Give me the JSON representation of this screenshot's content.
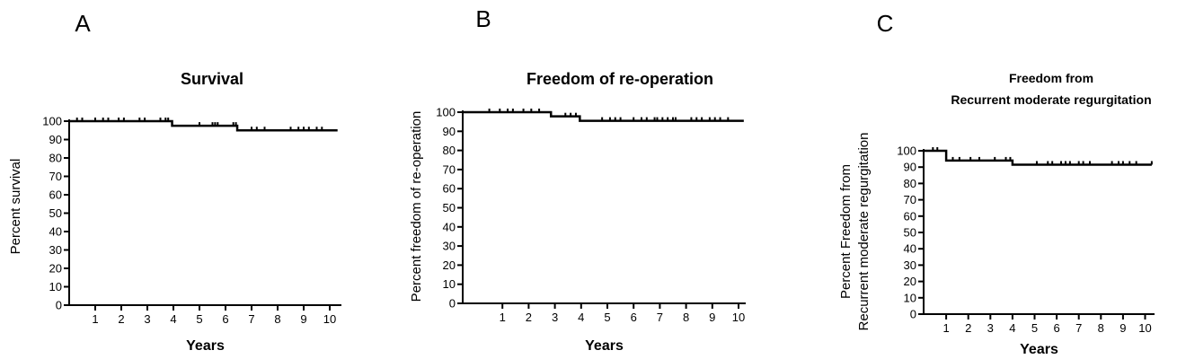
{
  "chart_data": [
    {
      "type": "line",
      "panel_label": "A",
      "title": [
        "Survival"
      ],
      "xlabel": "Years",
      "ylabel": [
        "Percent survival"
      ],
      "xlim": [
        0,
        10.5
      ],
      "ylim": [
        0,
        100
      ],
      "xticks": [
        1,
        2,
        3,
        4,
        5,
        6,
        7,
        8,
        9,
        10
      ],
      "yticks": [
        0,
        10,
        20,
        30,
        40,
        50,
        60,
        70,
        80,
        90,
        100
      ],
      "series": [
        {
          "name": "Survival",
          "steps": [
            [
              0,
              100
            ],
            [
              3.95,
              97.5
            ],
            [
              6.45,
              95
            ],
            [
              10.3,
              95
            ]
          ],
          "censored": [
            0.3,
            0.5,
            1.0,
            1.3,
            1.5,
            1.9,
            2.1,
            2.7,
            2.9,
            3.5,
            3.7,
            3.8,
            5.0,
            5.5,
            5.6,
            5.7,
            6.3,
            6.4,
            7.0,
            7.2,
            7.5,
            8.5,
            8.8,
            9.0,
            9.2,
            9.5,
            9.7
          ]
        }
      ]
    },
    {
      "type": "line",
      "panel_label": "B",
      "title": [
        "Freedom of re-operation"
      ],
      "xlabel": "Years",
      "ylabel": [
        "Percent freedom of re-operation"
      ],
      "xlim": [
        -0.5,
        10.3
      ],
      "ylim": [
        0,
        100
      ],
      "xticks": [
        1,
        2,
        3,
        4,
        5,
        6,
        7,
        8,
        9,
        10
      ],
      "yticks": [
        0,
        10,
        20,
        30,
        40,
        50,
        60,
        70,
        80,
        90,
        100
      ],
      "series": [
        {
          "name": "Freedom of re-operation",
          "steps": [
            [
              -0.5,
              100
            ],
            [
              2.85,
              97.8
            ],
            [
              3.95,
              95.5
            ],
            [
              10.2,
              95.5
            ]
          ],
          "censored": [
            0.5,
            0.9,
            1.2,
            1.4,
            1.8,
            2.1,
            2.4,
            3.4,
            3.6,
            3.8,
            4.8,
            5.1,
            5.3,
            5.5,
            6.0,
            6.3,
            6.5,
            6.8,
            6.9,
            7.1,
            7.3,
            7.5,
            7.6,
            8.2,
            8.4,
            8.6,
            8.9,
            9.1,
            9.3,
            9.6
          ]
        }
      ]
    },
    {
      "type": "line",
      "panel_label": "C",
      "title": [
        "Freedom from",
        "Recurrent moderate regurgitation"
      ],
      "xlabel": "Years",
      "ylabel": [
        "Percent Freedom from",
        "Recurrent moderate regurgitation"
      ],
      "xlim": [
        0,
        10.5
      ],
      "ylim": [
        0,
        100
      ],
      "xticks": [
        1,
        2,
        3,
        4,
        5,
        6,
        7,
        8,
        9,
        10
      ],
      "yticks": [
        0,
        10,
        20,
        30,
        40,
        50,
        60,
        70,
        80,
        90,
        100
      ],
      "series": [
        {
          "name": "Freedom from recurrent moderate regurgitation",
          "steps": [
            [
              0,
              100
            ],
            [
              1.0,
              94
            ],
            [
              4.0,
              91.5
            ],
            [
              10.3,
              91.5
            ]
          ],
          "censored": [
            0.4,
            0.6,
            1.3,
            1.6,
            2.1,
            2.5,
            3.2,
            3.7,
            3.9,
            5.1,
            5.6,
            5.8,
            6.2,
            6.4,
            6.6,
            7.0,
            7.2,
            7.5,
            8.5,
            8.8,
            9.0,
            9.3,
            9.6,
            10.3
          ]
        }
      ]
    }
  ]
}
